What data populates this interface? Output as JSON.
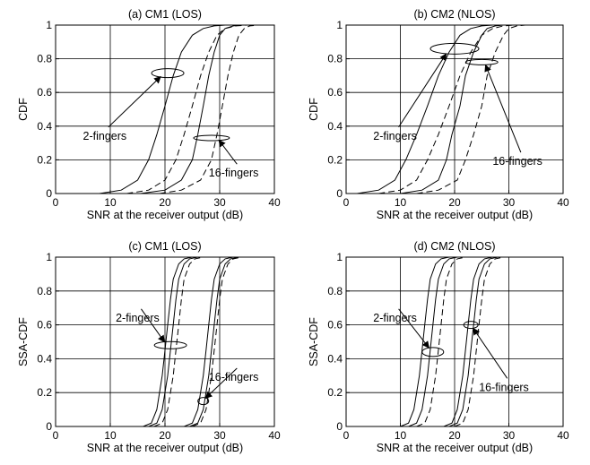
{
  "chart_data": [
    {
      "type": "line",
      "title": "(a) CM1 (LOS)",
      "xlabel": "SNR at the receiver output (dB)",
      "ylabel": "CDF",
      "xlim": [
        0,
        40
      ],
      "ylim": [
        0,
        1
      ],
      "xticks": [
        "0",
        "10",
        "20",
        "30",
        "40"
      ],
      "yticks": [
        "0",
        "0.2",
        "0.4",
        "0.6",
        "0.8",
        "1"
      ],
      "grid": true,
      "series": [
        {
          "group": "2-fingers",
          "style": "solid",
          "x": [
            8,
            12,
            15,
            17,
            18.5,
            20,
            21.5,
            23,
            25,
            27,
            29,
            31
          ],
          "y": [
            0,
            0.02,
            0.08,
            0.2,
            0.35,
            0.52,
            0.7,
            0.84,
            0.94,
            0.98,
            0.995,
            1
          ]
        },
        {
          "group": "2-fingers",
          "style": "dashed",
          "x": [
            13,
            17,
            20,
            22,
            23.5,
            25,
            26.5,
            28,
            29.5,
            31,
            33,
            35
          ],
          "y": [
            0,
            0.02,
            0.08,
            0.2,
            0.35,
            0.52,
            0.7,
            0.84,
            0.94,
            0.98,
            0.995,
            1
          ]
        },
        {
          "group": "16-fingers",
          "style": "solid",
          "x": [
            15.5,
            20,
            23,
            25,
            26,
            27,
            28,
            29,
            30,
            31,
            32.5,
            34
          ],
          "y": [
            0,
            0.02,
            0.08,
            0.2,
            0.35,
            0.52,
            0.7,
            0.84,
            0.94,
            0.98,
            0.995,
            1
          ]
        },
        {
          "group": "16-fingers",
          "style": "dashed",
          "x": [
            19,
            23,
            26.5,
            28.5,
            29.5,
            30.5,
            31.5,
            32.5,
            33.5,
            34.5,
            35.5,
            37
          ],
          "y": [
            0,
            0.02,
            0.08,
            0.2,
            0.35,
            0.52,
            0.7,
            0.84,
            0.94,
            0.98,
            0.995,
            1
          ]
        }
      ],
      "annotations": [
        {
          "text": "2-fingers",
          "ellipse_center": [
            20.5,
            0.715
          ],
          "text_pos": [
            5,
            0.32
          ]
        },
        {
          "text": "16-fingers",
          "ellipse_center": [
            28.5,
            0.33
          ],
          "text_pos": [
            28,
            0.1
          ]
        }
      ]
    },
    {
      "type": "line",
      "title": "(b) CM2 (NLOS)",
      "xlabel": "SNR at the receiver output (dB)",
      "ylabel": "CDF",
      "xlim": [
        0,
        40
      ],
      "ylim": [
        0,
        1
      ],
      "xticks": [
        "0",
        "10",
        "20",
        "30",
        "40"
      ],
      "yticks": [
        "0",
        "0.2",
        "0.4",
        "0.6",
        "0.8",
        "1"
      ],
      "grid": true,
      "series": [
        {
          "group": "2-fingers",
          "style": "solid",
          "x": [
            2,
            6,
            9,
            11,
            13,
            15,
            17,
            19,
            21,
            23,
            25,
            27
          ],
          "y": [
            0,
            0.02,
            0.08,
            0.2,
            0.35,
            0.52,
            0.7,
            0.84,
            0.94,
            0.98,
            0.995,
            1
          ]
        },
        {
          "group": "2-fingers",
          "style": "dashed",
          "x": [
            6,
            10,
            13,
            15,
            17,
            19,
            21,
            23,
            25,
            27,
            29,
            31
          ],
          "y": [
            0,
            0.02,
            0.08,
            0.2,
            0.35,
            0.52,
            0.7,
            0.84,
            0.94,
            0.98,
            0.995,
            1
          ]
        },
        {
          "group": "16-fingers",
          "style": "solid",
          "x": [
            10,
            14,
            17,
            18.5,
            19.5,
            21,
            22,
            23.5,
            25,
            26,
            27.5,
            29
          ],
          "y": [
            0,
            0.02,
            0.08,
            0.2,
            0.35,
            0.52,
            0.7,
            0.84,
            0.94,
            0.98,
            0.995,
            1
          ]
        },
        {
          "group": "16-fingers",
          "style": "dashed",
          "x": [
            13,
            17,
            20.5,
            22,
            23.5,
            25,
            26,
            27.5,
            29,
            30,
            31.5,
            33
          ],
          "y": [
            0,
            0.02,
            0.08,
            0.2,
            0.35,
            0.52,
            0.7,
            0.84,
            0.94,
            0.98,
            0.995,
            1
          ]
        }
      ],
      "annotations": [
        {
          "text": "2-fingers",
          "ellipse_center": [
            20,
            0.86
          ],
          "text_pos": [
            5,
            0.32
          ]
        },
        {
          "text": "16-fingers",
          "ellipse_center": [
            25,
            0.78
          ],
          "text_pos": [
            27,
            0.17
          ]
        }
      ]
    },
    {
      "type": "line",
      "title": "(c) CM1 (LOS)",
      "xlabel": "SNR at the receiver output (dB)",
      "ylabel": "SSA-CDF",
      "xlim": [
        0,
        40
      ],
      "ylim": [
        0,
        1
      ],
      "xticks": [
        "0",
        "10",
        "20",
        "30",
        "40"
      ],
      "yticks": [
        "0",
        "0.2",
        "0.4",
        "0.6",
        "0.8",
        "1"
      ],
      "grid": true,
      "series": [
        {
          "group": "2-fingers",
          "style": "solid",
          "x": [
            16,
            17.5,
            18.5,
            19.5,
            20,
            20.5,
            21,
            21.5,
            22.5,
            23.5,
            25
          ],
          "y": [
            0,
            0.02,
            0.1,
            0.3,
            0.45,
            0.6,
            0.75,
            0.87,
            0.96,
            0.99,
            1
          ]
        },
        {
          "group": "2-fingers",
          "style": "solid",
          "x": [
            17,
            18.5,
            19.5,
            20.5,
            21,
            21.5,
            22,
            22.5,
            23.5,
            24.5,
            26
          ],
          "y": [
            0,
            0.02,
            0.1,
            0.3,
            0.45,
            0.6,
            0.75,
            0.87,
            0.96,
            0.99,
            1
          ]
        },
        {
          "group": "2-fingers",
          "style": "dashed",
          "x": [
            18,
            19.5,
            20.5,
            21.5,
            22,
            22.5,
            23,
            23.5,
            24.5,
            25.5,
            27
          ],
          "y": [
            0,
            0.02,
            0.1,
            0.3,
            0.45,
            0.6,
            0.75,
            0.87,
            0.96,
            0.99,
            1
          ]
        },
        {
          "group": "16-fingers",
          "style": "solid",
          "x": [
            23.5,
            25,
            26,
            27,
            27.5,
            28,
            28.5,
            29,
            30,
            31,
            32.5
          ],
          "y": [
            0,
            0.02,
            0.1,
            0.3,
            0.45,
            0.6,
            0.75,
            0.87,
            0.96,
            0.99,
            1
          ]
        },
        {
          "group": "16-fingers",
          "style": "solid",
          "x": [
            24.5,
            26,
            27,
            28,
            28.5,
            29,
            29.5,
            30,
            31,
            32,
            33.5
          ],
          "y": [
            0,
            0.02,
            0.1,
            0.3,
            0.45,
            0.6,
            0.75,
            0.87,
            0.96,
            0.99,
            1
          ]
        },
        {
          "group": "16-fingers",
          "style": "dashed",
          "x": [
            25,
            26.5,
            27.5,
            28.5,
            29,
            29.5,
            30,
            30.5,
            31.5,
            32.5,
            34
          ],
          "y": [
            0,
            0.02,
            0.1,
            0.3,
            0.45,
            0.6,
            0.75,
            0.87,
            0.96,
            0.99,
            1
          ]
        }
      ],
      "annotations": [
        {
          "text": "2-fingers",
          "ellipse_center": [
            21,
            0.48
          ],
          "text_pos": [
            11,
            0.62
          ]
        },
        {
          "text": "16-fingers",
          "ellipse_center": [
            27,
            0.15
          ],
          "text_pos": [
            28,
            0.27
          ]
        }
      ]
    },
    {
      "type": "line",
      "title": "(d) CM2 (NLOS)",
      "xlabel": "SNR at the receiver output (dB)",
      "ylabel": "SSA-CDF",
      "xlim": [
        0,
        40
      ],
      "ylim": [
        0,
        1
      ],
      "xticks": [
        "0",
        "10",
        "20",
        "30",
        "40"
      ],
      "yticks": [
        "0",
        "0.2",
        "0.4",
        "0.6",
        "0.8",
        "1"
      ],
      "grid": true,
      "series": [
        {
          "group": "2-fingers",
          "style": "solid",
          "x": [
            10,
            11.5,
            12.5,
            13.5,
            14,
            14.5,
            15,
            15.5,
            16.5,
            17.5,
            19
          ],
          "y": [
            0,
            0.02,
            0.1,
            0.3,
            0.45,
            0.6,
            0.75,
            0.87,
            0.96,
            0.99,
            1
          ]
        },
        {
          "group": "2-fingers",
          "style": "solid",
          "x": [
            11.5,
            13,
            14,
            15,
            15.5,
            16,
            16.5,
            17,
            18,
            19,
            20.5
          ],
          "y": [
            0,
            0.02,
            0.1,
            0.3,
            0.45,
            0.6,
            0.75,
            0.87,
            0.96,
            0.99,
            1
          ]
        },
        {
          "group": "2-fingers",
          "style": "dashed",
          "x": [
            13,
            14.5,
            15.5,
            16.5,
            17,
            17.5,
            18,
            18.5,
            19.5,
            20.5,
            22
          ],
          "y": [
            0,
            0.02,
            0.1,
            0.3,
            0.45,
            0.6,
            0.75,
            0.87,
            0.96,
            0.99,
            1
          ]
        },
        {
          "group": "16-fingers",
          "style": "solid",
          "x": [
            18,
            19.5,
            20.5,
            21.5,
            22,
            22.5,
            23,
            23.5,
            24.5,
            25.5,
            27
          ],
          "y": [
            0,
            0.02,
            0.1,
            0.3,
            0.45,
            0.6,
            0.75,
            0.87,
            0.96,
            0.99,
            1
          ]
        },
        {
          "group": "16-fingers",
          "style": "solid",
          "x": [
            19,
            20.5,
            21.5,
            22.5,
            23,
            23.5,
            24,
            24.5,
            25.5,
            26.5,
            28
          ],
          "y": [
            0,
            0.02,
            0.1,
            0.3,
            0.45,
            0.6,
            0.75,
            0.87,
            0.96,
            0.99,
            1
          ]
        },
        {
          "group": "16-fingers",
          "style": "dashed",
          "x": [
            20,
            21.5,
            22.5,
            23.5,
            24,
            24.5,
            25,
            25.5,
            26.5,
            27.5,
            29
          ],
          "y": [
            0,
            0.02,
            0.1,
            0.3,
            0.45,
            0.6,
            0.75,
            0.87,
            0.96,
            0.99,
            1
          ]
        }
      ],
      "annotations": [
        {
          "text": "2-fingers",
          "ellipse_center": [
            16,
            0.44
          ],
          "text_pos": [
            5,
            0.62
          ]
        },
        {
          "text": "16-fingers",
          "ellipse_center": [
            23,
            0.6
          ],
          "text_pos": [
            24.5,
            0.21
          ]
        }
      ]
    }
  ]
}
